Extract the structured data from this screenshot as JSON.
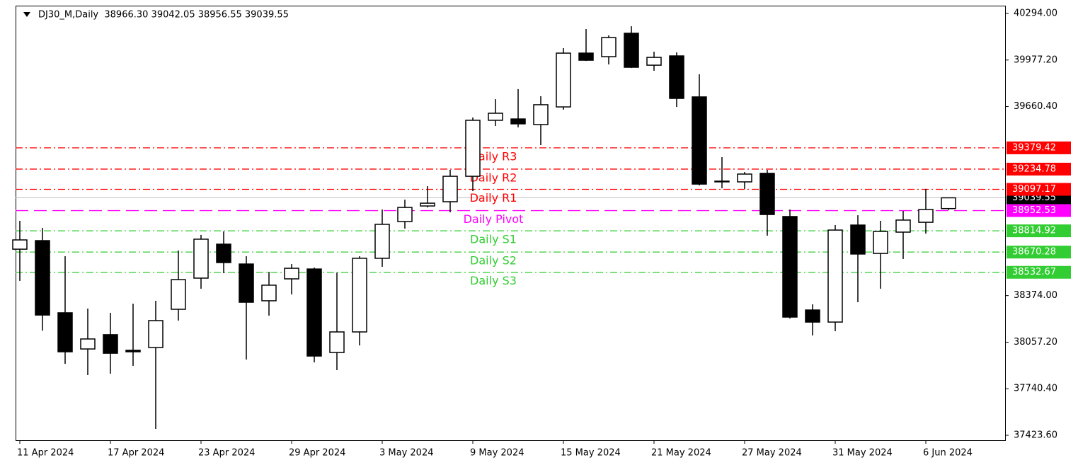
{
  "chart_data": {
    "type": "candlestick",
    "title": "DJ30_M,Daily  38966.30 39042.05 38956.55 39039.55",
    "categories": [
      "11 Apr 2024",
      null,
      null,
      null,
      "17 Apr 2024",
      null,
      null,
      null,
      "23 Apr 2024",
      null,
      null,
      null,
      "29 Apr 2024",
      null,
      null,
      null,
      "3 May 2024",
      null,
      null,
      null,
      "9 May 2024",
      null,
      null,
      null,
      "15 May 2024",
      null,
      null,
      null,
      "21 May 2024",
      null,
      null,
      null,
      "27 May 2024",
      null,
      null,
      null,
      "31 May 2024",
      null,
      null,
      null,
      "6 Jun 2024",
      null
    ],
    "open": [
      38690,
      38748,
      38257,
      38011,
      38108,
      38002,
      38021,
      38281,
      38493,
      38724,
      38589,
      38339,
      38488,
      38555,
      37987,
      38127,
      38628,
      38878,
      38984,
      39013,
      39186,
      39567,
      39576,
      39538,
      39658,
      40024,
      40000,
      40159,
      39942,
      40005,
      39726,
      39153,
      39148,
      39206,
      38912,
      38276,
      38194,
      38854,
      38661,
      38806,
      38873,
      38966.3
    ],
    "high": [
      38883,
      38835,
      38642,
      38286,
      38257,
      38319,
      38339,
      38681,
      38787,
      38811,
      38642,
      38536,
      38589,
      38565,
      38531,
      38642,
      38960,
      39027,
      39119,
      39230,
      39586,
      39711,
      39779,
      39731,
      40058,
      40188,
      40145,
      40207,
      40034,
      40029,
      39880,
      39316,
      39215,
      39230,
      38960,
      38315,
      38854,
      38921,
      38883,
      38950,
      39100,
      39042.05
    ],
    "low": [
      38474,
      38136,
      37910,
      37833,
      37843,
      37896,
      37467,
      38204,
      38421,
      38527,
      37939,
      38238,
      38382,
      37920,
      37867,
      38035,
      38570,
      38830,
      38974,
      38941,
      39085,
      39528,
      39519,
      39398,
      39639,
      39971,
      39947,
      39923,
      39904,
      39658,
      39124,
      39104,
      39100,
      38782,
      38218,
      38103,
      38132,
      38329,
      38421,
      38623,
      38796,
      38956.55
    ],
    "close": [
      38753,
      38242,
      37992,
      38079,
      37982,
      37992,
      38204,
      38483,
      38758,
      38599,
      38329,
      38445,
      38560,
      37963,
      38127,
      38628,
      38859,
      38974,
      39003,
      39186,
      39567,
      39615,
      39543,
      39673,
      40024,
      39976,
      40130,
      39928,
      39995,
      39716,
      39133,
      39148,
      39201,
      38926,
      38228,
      38194,
      38820,
      38657,
      38811,
      38888,
      38960,
      39039.55
    ],
    "up_color": "#ffffff",
    "down_color": "#000000",
    "ylim": [
      37390,
      40347
    ],
    "yticks": [
      {
        "value": 40294,
        "label": "40294.00"
      },
      {
        "value": 39977.2,
        "label": "39977.20"
      },
      {
        "value": 39660.4,
        "label": "39660.40"
      },
      {
        "value": 38374,
        "label": "38374.00"
      },
      {
        "value": 38057.2,
        "label": "38057.20"
      },
      {
        "value": 37740.4,
        "label": "37740.40"
      },
      {
        "value": 37423.6,
        "label": "37423.60"
      }
    ],
    "levels": [
      {
        "label": "Daily R3",
        "value": 39379.42,
        "color": "#ff0000",
        "style": "dashdot"
      },
      {
        "label": "Daily R2",
        "value": 39234.78,
        "color": "#ff0000",
        "style": "dashdot"
      },
      {
        "label": "Daily R1",
        "value": 39097.17,
        "color": "#ff0000",
        "style": "dashdot"
      },
      {
        "label": "Daily Pivot",
        "value": 38952.53,
        "color": "#ff00ff",
        "style": "dashed"
      },
      {
        "label": "Daily S1",
        "value": 38814.92,
        "color": "#32cd32",
        "style": "dashdot"
      },
      {
        "label": "Daily S2",
        "value": 38670.28,
        "color": "#32cd32",
        "style": "dashdot"
      },
      {
        "label": "Daily S3",
        "value": 38532.67,
        "color": "#32cd32",
        "style": "dashdot"
      }
    ]
  }
}
